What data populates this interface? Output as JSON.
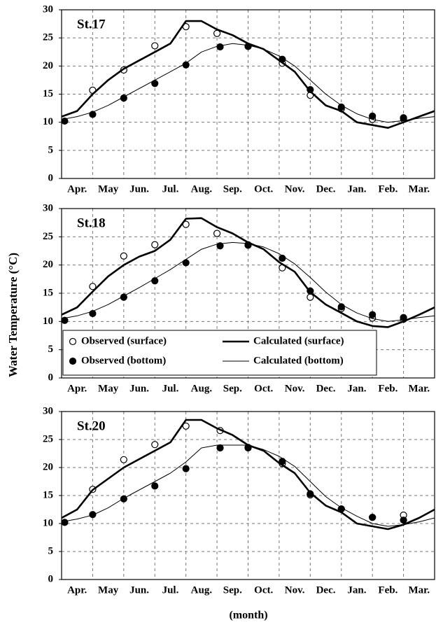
{
  "y_label": "Water Temperature (°C)",
  "x_label": "(month)",
  "chart_data": [
    {
      "type": "line",
      "title": "St.17",
      "categories": [
        "Apr.",
        "May",
        "Jun.",
        "Jul.",
        "Aug.",
        "Sep.",
        "Oct.",
        "Nov.",
        "Dec.",
        "Jan.",
        "Feb.",
        "Mar."
      ],
      "xlim": [
        0,
        12
      ],
      "ylim": [
        0,
        30
      ],
      "yticks": [
        0,
        5,
        10,
        15,
        20,
        25,
        30
      ],
      "grid": true,
      "series": [
        {
          "type": "scatter",
          "marker": "open",
          "color": "#000",
          "x": [
            1,
            2,
            3,
            4,
            5,
            6,
            7.1,
            8,
            9,
            10,
            11
          ],
          "values": [
            15.7,
            19.3,
            23.6,
            27,
            25.8,
            23.5,
            20.5,
            14.8,
            12.4,
            10.5,
            10.6
          ]
        },
        {
          "type": "scatter",
          "marker": "filled",
          "color": "#000",
          "x": [
            0.1,
            1,
            2,
            3,
            4,
            5.1,
            6,
            7.1,
            8,
            9,
            10,
            11
          ],
          "values": [
            10.2,
            11.4,
            14.3,
            16.9,
            20.2,
            23.4,
            23.5,
            21.2,
            15.8,
            12.7,
            11.1,
            10.8
          ]
        },
        {
          "type": "line",
          "weight": "bold",
          "color": "#000",
          "x": [
            0,
            0.5,
            1,
            1.5,
            2,
            2.5,
            3,
            3.5,
            4,
            4.5,
            5,
            5.5,
            6,
            6.5,
            7,
            7.5,
            8,
            8.5,
            9,
            9.5,
            10,
            10.5,
            11,
            11.5,
            12
          ],
          "values": [
            11,
            12,
            15,
            17.5,
            19.5,
            21,
            22.5,
            24,
            28,
            28,
            26.5,
            25.5,
            24,
            23,
            21,
            19,
            15.5,
            13,
            12,
            10,
            9.5,
            9,
            10,
            11,
            12
          ]
        },
        {
          "type": "line",
          "weight": "normal",
          "color": "#000",
          "x": [
            0,
            0.5,
            1,
            1.5,
            2,
            2.5,
            3,
            3.5,
            4,
            4.5,
            5,
            5.5,
            6,
            6.5,
            7,
            7.5,
            8,
            8.5,
            9,
            9.5,
            10,
            10.5,
            11,
            11.5,
            12
          ],
          "values": [
            10.5,
            11,
            11.8,
            13,
            14.5,
            16,
            17.5,
            19,
            20.5,
            22.5,
            23.5,
            24,
            23.7,
            23,
            21.8,
            20,
            17.5,
            15,
            13,
            11.5,
            10.5,
            10,
            10.3,
            10.7,
            11
          ]
        }
      ]
    },
    {
      "type": "line",
      "title": "St.18",
      "categories": [
        "Apr.",
        "May",
        "Jun.",
        "Jul.",
        "Aug.",
        "Sep.",
        "Oct.",
        "Nov.",
        "Dec.",
        "Jan.",
        "Feb.",
        "Mar."
      ],
      "xlim": [
        0,
        12
      ],
      "ylim": [
        0,
        30
      ],
      "yticks": [
        0,
        5,
        10,
        15,
        20,
        25,
        30
      ],
      "grid": true,
      "legend": "lower left",
      "series": [
        {
          "name": "Observed (surface)",
          "type": "scatter",
          "marker": "open",
          "color": "#000",
          "x": [
            1,
            2,
            3,
            4,
            5,
            6,
            7.1,
            8,
            9,
            10,
            11
          ],
          "values": [
            16.2,
            21.6,
            23.6,
            27.2,
            25.6,
            23.5,
            19.5,
            14.3,
            12.3,
            10.6,
            10.4
          ]
        },
        {
          "name": "Observed (bottom)",
          "type": "scatter",
          "marker": "filled",
          "color": "#000",
          "x": [
            0.1,
            1,
            2,
            3,
            4,
            5.1,
            6,
            7.1,
            8,
            9,
            10,
            11
          ],
          "values": [
            10.2,
            11.4,
            14.3,
            17.2,
            20.4,
            23.4,
            23.6,
            21.2,
            15.4,
            12.6,
            11.2,
            10.7
          ]
        },
        {
          "name": "Calculated (surface)",
          "type": "line",
          "weight": "bold",
          "color": "#000",
          "x": [
            0,
            0.5,
            1,
            1.5,
            2,
            2.5,
            3,
            3.5,
            4,
            4.5,
            5,
            5.5,
            6,
            6.5,
            7,
            7.5,
            8,
            8.5,
            9,
            9.5,
            10,
            10.5,
            11,
            11.5,
            12
          ],
          "values": [
            11.2,
            12.5,
            15.3,
            18,
            20,
            21.5,
            22.5,
            24.5,
            28.2,
            28.3,
            26.7,
            25.6,
            24,
            22.8,
            20.5,
            18.8,
            15.2,
            13,
            11.5,
            10,
            9.2,
            9,
            10,
            11.2,
            12.5
          ]
        },
        {
          "name": "Calculated (bottom)",
          "type": "line",
          "weight": "normal",
          "color": "#000",
          "x": [
            0,
            0.5,
            1,
            1.5,
            2,
            2.5,
            3,
            3.5,
            4,
            4.5,
            5,
            5.5,
            6,
            6.5,
            7,
            7.5,
            8,
            8.5,
            9,
            9.5,
            10,
            10.5,
            11,
            11.5,
            12
          ],
          "values": [
            10.5,
            11,
            11.8,
            13,
            14.5,
            16,
            17.6,
            19.2,
            21,
            22.8,
            23.7,
            24,
            23.8,
            23.2,
            22,
            20.2,
            17.8,
            15.2,
            13,
            11.5,
            10.5,
            10,
            10.3,
            10.7,
            11
          ]
        }
      ]
    },
    {
      "type": "line",
      "title": "St.20",
      "categories": [
        "Apr.",
        "May",
        "Jun.",
        "Jul.",
        "Aug.",
        "Sep.",
        "Oct.",
        "Nov.",
        "Dec.",
        "Jan.",
        "Feb.",
        "Mar."
      ],
      "xlim": [
        0,
        12
      ],
      "ylim": [
        0,
        30
      ],
      "yticks": [
        0,
        5,
        10,
        15,
        20,
        25,
        30
      ],
      "grid": true,
      "series": [
        {
          "type": "scatter",
          "marker": "open",
          "color": "#000",
          "x": [
            1,
            2,
            3,
            4,
            5.1,
            6,
            7.1,
            8,
            9,
            10,
            11
          ],
          "values": [
            16.1,
            21.4,
            24.1,
            27.4,
            26.6,
            23.5,
            20.7,
            15.1,
            12.6,
            11.1,
            11.5
          ]
        },
        {
          "type": "scatter",
          "marker": "filled",
          "color": "#000",
          "x": [
            0.1,
            1,
            2,
            3,
            4,
            5.1,
            6,
            7.1,
            8,
            9,
            10,
            11
          ],
          "values": [
            10.2,
            11.6,
            14.4,
            16.7,
            19.8,
            23.5,
            23.6,
            21.1,
            15.3,
            12.6,
            11.1,
            10.6
          ]
        },
        {
          "type": "line",
          "weight": "bold",
          "color": "#000",
          "x": [
            0,
            0.5,
            1,
            1.5,
            2,
            2.5,
            3,
            3.5,
            4,
            4.5,
            5,
            5.5,
            6,
            6.5,
            7,
            7.5,
            8,
            8.5,
            9,
            9.5,
            10,
            10.5,
            11,
            11.5,
            12
          ],
          "values": [
            11,
            12.5,
            16,
            18,
            20,
            21.5,
            23,
            24.5,
            28.5,
            28.5,
            27,
            25.8,
            24,
            23,
            20.8,
            19,
            15.5,
            13.2,
            12,
            10,
            9.5,
            9,
            9.8,
            11,
            12.5
          ]
        },
        {
          "type": "line",
          "weight": "normal",
          "color": "#000",
          "x": [
            0,
            0.5,
            1,
            1.5,
            2,
            2.5,
            3,
            3.5,
            4,
            4.5,
            5,
            5.5,
            6,
            6.5,
            7,
            7.5,
            8,
            8.5,
            9,
            9.5,
            10,
            10.5,
            11,
            11.5,
            12
          ],
          "values": [
            10.3,
            10.8,
            11.5,
            12.8,
            14.5,
            16,
            17.5,
            19,
            21,
            23.5,
            24,
            24,
            24,
            23.2,
            22,
            20.2,
            17.5,
            14.8,
            12.8,
            11.3,
            10,
            9.5,
            9.8,
            10.3,
            11
          ]
        }
      ]
    }
  ]
}
